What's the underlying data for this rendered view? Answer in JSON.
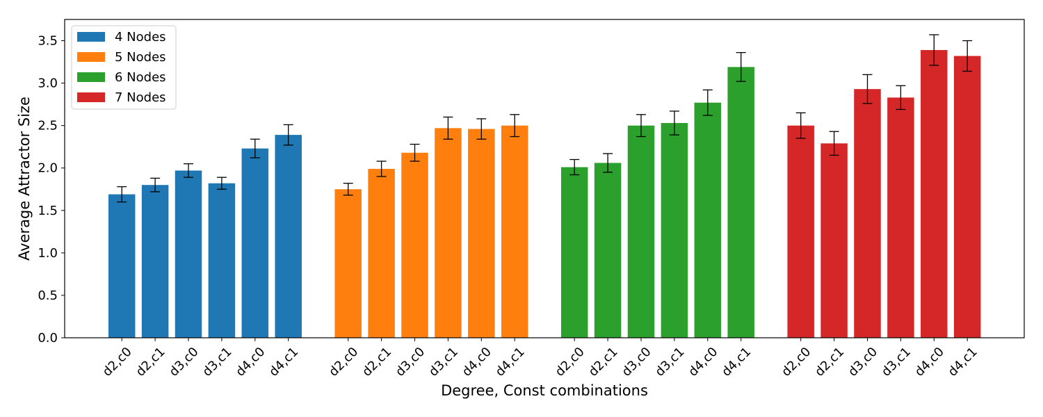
{
  "chart_data": {
    "type": "bar",
    "xlabel": "Degree, Const combinations",
    "ylabel": "Average Attractor Size",
    "ylim": [
      0,
      3.75
    ],
    "yticks": [
      "0.0",
      "0.5",
      "1.0",
      "1.5",
      "2.0",
      "2.5",
      "3.0",
      "3.5"
    ],
    "categories": [
      "d2,c0",
      "d2,c1",
      "d3,c0",
      "d3,c1",
      "d4,c0",
      "d4,c1"
    ],
    "legend_position": "top-left",
    "grid": false,
    "series": [
      {
        "name": "4 Nodes",
        "color": "#1f77b4",
        "values": [
          1.69,
          1.8,
          1.97,
          1.82,
          2.23,
          2.39
        ],
        "errors": [
          0.09,
          0.08,
          0.08,
          0.07,
          0.11,
          0.12
        ]
      },
      {
        "name": "5 Nodes",
        "color": "#ff7f0e",
        "values": [
          1.75,
          1.99,
          2.18,
          2.47,
          2.46,
          2.5
        ],
        "errors": [
          0.07,
          0.09,
          0.1,
          0.13,
          0.12,
          0.13
        ]
      },
      {
        "name": "6 Nodes",
        "color": "#2ca02c",
        "values": [
          2.01,
          2.06,
          2.5,
          2.53,
          2.77,
          3.19
        ],
        "errors": [
          0.09,
          0.11,
          0.13,
          0.14,
          0.15,
          0.17
        ]
      },
      {
        "name": "7 Nodes",
        "color": "#d62728",
        "values": [
          2.5,
          2.29,
          2.93,
          2.83,
          3.39,
          3.32
        ],
        "errors": [
          0.15,
          0.14,
          0.17,
          0.14,
          0.18,
          0.18
        ]
      }
    ]
  }
}
